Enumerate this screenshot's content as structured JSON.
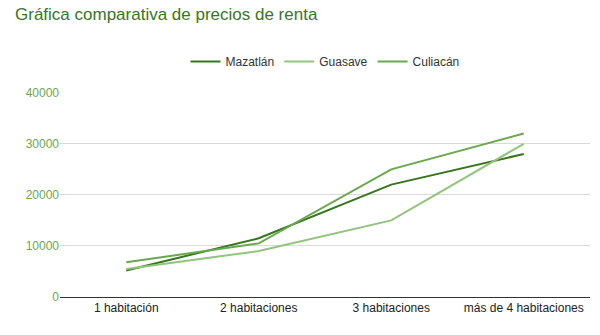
{
  "chart_data": {
    "type": "line",
    "title": "Gráfica comparativa de precios de renta",
    "categories": [
      "1 habitación",
      "2 habitaciones",
      "3 habitaciones",
      "más de 4 habitaciones"
    ],
    "series": [
      {
        "name": "Mazatlán",
        "color": "#38761d",
        "values": [
          5200,
          11500,
          22000,
          28000
        ]
      },
      {
        "name": "Guasave",
        "color": "#93c47d",
        "values": [
          5500,
          9000,
          15000,
          30000
        ]
      },
      {
        "name": "Culiacán",
        "color": "#6aa84f",
        "values": [
          6800,
          10500,
          25000,
          32000
        ]
      }
    ],
    "ylim": [
      0,
      40000
    ],
    "yticks": [
      0,
      10000,
      20000,
      30000,
      40000
    ],
    "grid": true,
    "legend": "top"
  }
}
